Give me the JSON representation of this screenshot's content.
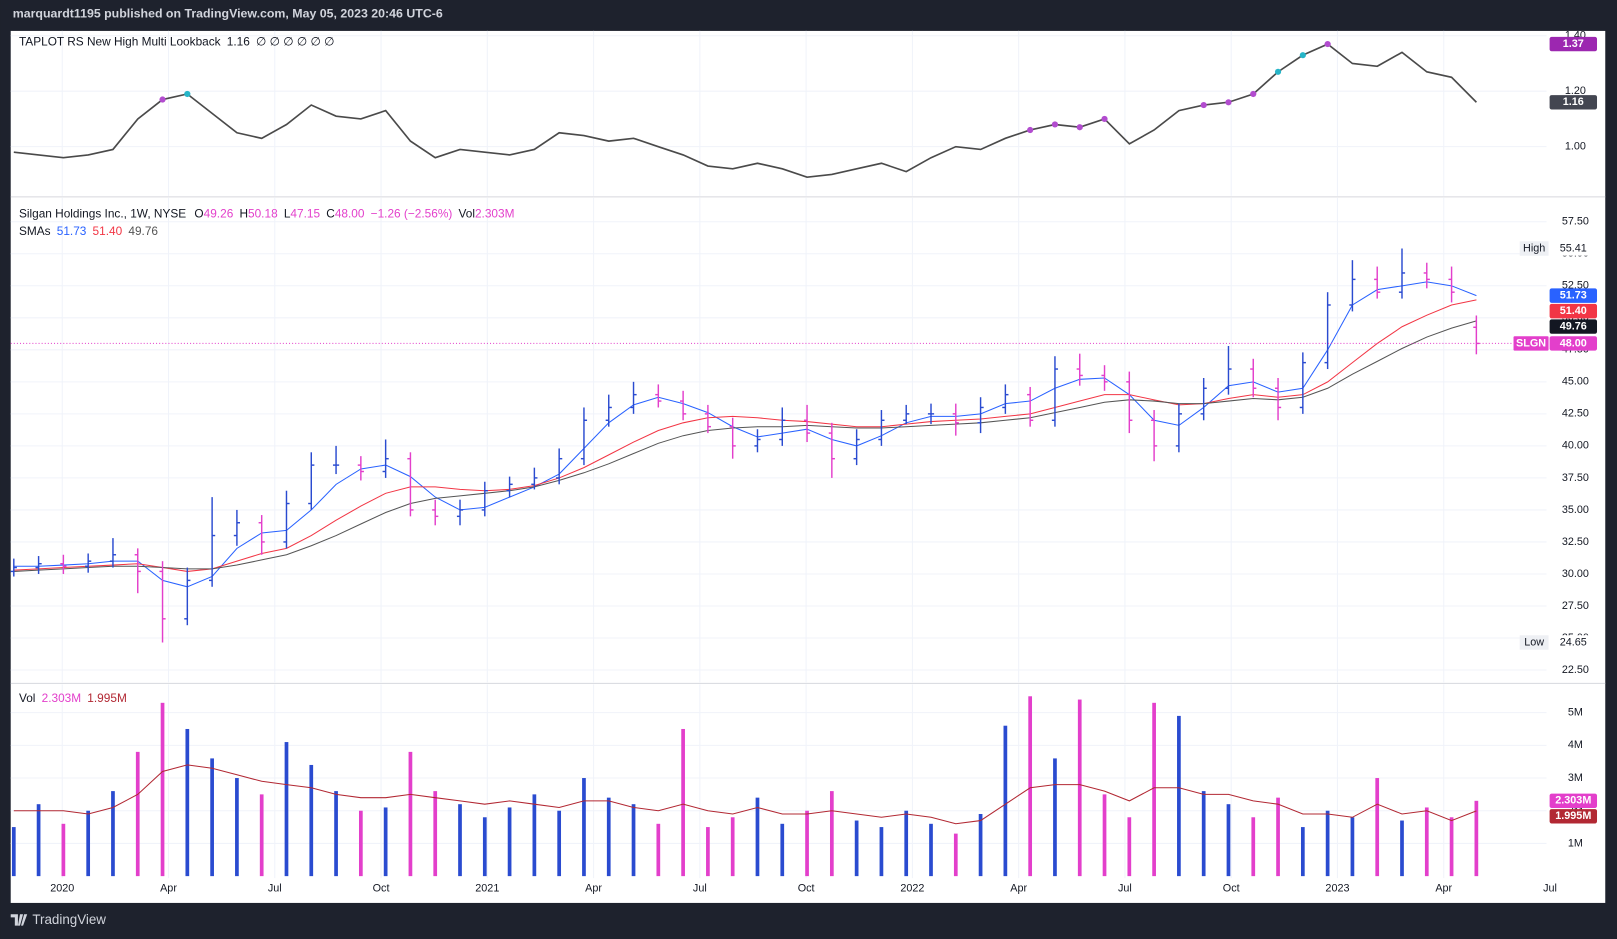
{
  "header": "marquardt1195 published on TradingView.com, May 05, 2023 20:46 UTC-6",
  "footer": "TradingView",
  "x_labels": [
    "2020",
    "Apr",
    "Jul",
    "Oct",
    "2021",
    "Apr",
    "Jul",
    "Oct",
    "2022",
    "Apr",
    "Jul",
    "Oct",
    "2023",
    "Apr",
    "Jul"
  ],
  "chart_data": [
    {
      "type": "line",
      "title": "TAPLOT RS New High Multi Lookback",
      "placeholders": "∅ ∅ ∅ ∅ ∅ ∅",
      "color": "#4a4a4a",
      "values": [
        0.98,
        0.97,
        0.96,
        0.97,
        0.99,
        1.1,
        1.17,
        1.19,
        1.12,
        1.05,
        1.03,
        1.08,
        1.15,
        1.11,
        1.1,
        1.13,
        1.02,
        0.96,
        0.99,
        0.98,
        0.97,
        0.99,
        1.05,
        1.04,
        1.02,
        1.03,
        1.0,
        0.97,
        0.93,
        0.92,
        0.94,
        0.92,
        0.89,
        0.9,
        0.92,
        0.94,
        0.91,
        0.96,
        1.0,
        0.99,
        1.03,
        1.06,
        1.08,
        1.07,
        1.1,
        1.01,
        1.06,
        1.13,
        1.15,
        1.16,
        1.19,
        1.27,
        1.33,
        1.37,
        1.3,
        1.29,
        1.34,
        1.27,
        1.25,
        1.16
      ],
      "marker_colors": [
        null,
        null,
        null,
        null,
        null,
        null,
        "#b24ccf",
        "#26b5c8",
        null,
        null,
        null,
        null,
        null,
        null,
        null,
        null,
        null,
        null,
        null,
        null,
        null,
        null,
        null,
        null,
        null,
        null,
        null,
        null,
        null,
        null,
        null,
        null,
        null,
        null,
        null,
        null,
        null,
        null,
        null,
        null,
        null,
        "#b24ccf",
        "#b24ccf",
        "#b24ccf",
        "#b24ccf",
        null,
        null,
        null,
        "#b24ccf",
        "#b24ccf",
        "#b24ccf",
        "#26b5c8",
        "#26b5c8",
        "#b24ccf",
        null,
        null,
        null,
        null,
        null,
        null
      ],
      "ylim": [
        0.83,
        1.41
      ],
      "yticks": [
        {
          "value": 1.0,
          "label": "1.00"
        },
        {
          "value": 1.2,
          "label": "1.20"
        },
        {
          "value": 1.4,
          "label": "1.40"
        }
      ],
      "tags": [
        {
          "value": 1.37,
          "label": "1.37",
          "color": "#9c27b0"
        },
        {
          "value": 1.16,
          "label": "1.16",
          "color": "#434651"
        }
      ]
    },
    {
      "type": "ohlc",
      "title": "Silgan Holdings Inc., 1W, NYSE",
      "legend_keys": [
        "O",
        "H",
        "L",
        "C",
        "Vol"
      ],
      "change": "−1.26 (−2.56%)",
      "sma_label": "SMAs",
      "up_color": "#2a4bd0",
      "down_color": "#e33fcb",
      "open": [
        30.2,
        30.5,
        30.8,
        30.6,
        31.0,
        31.5,
        30.2,
        26.5,
        29.5,
        33.0,
        34.0,
        32.5,
        35.5,
        38.5,
        38.5,
        38.0,
        39.0,
        35.0,
        34.5,
        35.0,
        36.5,
        37.0,
        37.5,
        39.0,
        42.0,
        43.0,
        44.0,
        43.5,
        42.5,
        41.5,
        40.0,
        40.5,
        42.0,
        41.0,
        39.0,
        40.5,
        42.0,
        42.5,
        42.5,
        41.8,
        43.0,
        44.0,
        42.0,
        46.0,
        45.5,
        45.0,
        42.0,
        40.0,
        42.5,
        44.5,
        46.0,
        44.5,
        43.0,
        46.5,
        51.0,
        53.0,
        52.0,
        53.5,
        53.0,
        49.26
      ],
      "high": [
        31.2,
        31.4,
        31.5,
        31.6,
        32.8,
        32.0,
        31.0,
        30.5,
        36.0,
        35.0,
        34.6,
        36.5,
        39.5,
        40.0,
        39.2,
        40.5,
        39.5,
        35.8,
        35.8,
        37.2,
        37.6,
        38.3,
        39.8,
        43.0,
        44.0,
        45.0,
        44.8,
        44.3,
        43.2,
        42.2,
        41.3,
        43.0,
        43.2,
        41.8,
        41.3,
        42.8,
        43.2,
        43.3,
        43.3,
        43.8,
        44.8,
        44.6,
        47.0,
        47.2,
        46.3,
        45.8,
        42.8,
        43.3,
        45.3,
        47.8,
        46.8,
        45.3,
        47.3,
        52.0,
        54.5,
        54.0,
        55.41,
        54.3,
        54.0,
        50.18
      ],
      "low": [
        29.8,
        30.0,
        30.0,
        30.1,
        30.5,
        28.5,
        24.65,
        26.0,
        29.0,
        32.2,
        31.5,
        32.0,
        35.0,
        37.8,
        37.3,
        37.5,
        34.5,
        33.8,
        33.8,
        34.5,
        36.0,
        36.6,
        37.0,
        38.5,
        41.5,
        42.5,
        43.0,
        42.0,
        41.0,
        39.0,
        39.5,
        40.0,
        40.3,
        37.5,
        38.5,
        40.0,
        41.7,
        41.7,
        40.8,
        41.0,
        42.5,
        41.5,
        41.5,
        44.7,
        44.3,
        41.0,
        38.8,
        39.5,
        42.0,
        44.0,
        43.8,
        42.0,
        42.5,
        46.0,
        50.5,
        51.5,
        51.5,
        52.3,
        51.2,
        47.15
      ],
      "close": [
        30.5,
        30.8,
        30.6,
        31.0,
        31.5,
        30.2,
        26.5,
        29.5,
        33.0,
        34.0,
        32.5,
        35.5,
        38.5,
        38.5,
        38.0,
        39.0,
        35.0,
        34.5,
        35.0,
        36.5,
        37.0,
        37.5,
        39.0,
        42.0,
        43.0,
        44.0,
        43.5,
        42.5,
        41.5,
        40.0,
        40.5,
        42.0,
        41.0,
        39.0,
        40.5,
        42.0,
        42.5,
        42.5,
        41.8,
        43.0,
        44.0,
        42.0,
        46.0,
        45.5,
        45.0,
        42.0,
        40.0,
        42.5,
        44.5,
        46.0,
        44.5,
        43.0,
        46.5,
        51.0,
        53.0,
        52.0,
        53.5,
        53.0,
        52.0,
        48.0
      ],
      "series": [
        {
          "color": "#2962ff",
          "values": [
            30.6,
            30.6,
            30.7,
            30.8,
            31.0,
            31.0,
            29.5,
            29.0,
            29.8,
            32.0,
            33.2,
            33.4,
            35.0,
            37.0,
            38.2,
            38.5,
            37.6,
            36.0,
            35.0,
            35.2,
            36.0,
            36.8,
            37.8,
            39.8,
            41.8,
            43.2,
            43.8,
            43.3,
            42.6,
            41.5,
            40.7,
            41.0,
            41.3,
            40.5,
            40.0,
            40.8,
            41.8,
            42.3,
            42.3,
            42.5,
            43.3,
            43.5,
            44.5,
            45.2,
            45.3,
            44.0,
            42.0,
            41.6,
            43.0,
            44.7,
            45.0,
            44.2,
            44.5,
            47.5,
            51.0,
            52.2,
            52.5,
            52.8,
            52.5,
            51.73
          ]
        },
        {
          "color": "#f23645",
          "values": [
            30.3,
            30.4,
            30.5,
            30.6,
            30.7,
            30.8,
            30.5,
            30.2,
            30.4,
            31.0,
            31.6,
            32.0,
            33.0,
            34.2,
            35.3,
            36.3,
            36.8,
            36.8,
            36.6,
            36.5,
            36.6,
            36.9,
            37.5,
            38.3,
            39.3,
            40.3,
            41.2,
            41.8,
            42.2,
            42.3,
            42.2,
            42.0,
            41.9,
            41.7,
            41.5,
            41.5,
            41.7,
            41.9,
            42.0,
            42.1,
            42.3,
            42.5,
            43.0,
            43.5,
            44.0,
            44.0,
            43.6,
            43.2,
            43.3,
            43.7,
            44.0,
            43.8,
            44.0,
            45.0,
            46.5,
            48.0,
            49.3,
            50.2,
            51.0,
            51.4
          ]
        },
        {
          "color": "#555555",
          "values": [
            30.2,
            30.3,
            30.4,
            30.5,
            30.6,
            30.6,
            30.5,
            30.4,
            30.4,
            30.7,
            31.1,
            31.5,
            32.2,
            33.0,
            33.9,
            34.8,
            35.5,
            35.9,
            36.1,
            36.3,
            36.5,
            36.8,
            37.3,
            37.9,
            38.6,
            39.4,
            40.2,
            40.8,
            41.2,
            41.4,
            41.5,
            41.5,
            41.6,
            41.5,
            41.4,
            41.4,
            41.5,
            41.6,
            41.7,
            41.8,
            42.0,
            42.2,
            42.6,
            43.0,
            43.4,
            43.6,
            43.5,
            43.3,
            43.3,
            43.5,
            43.7,
            43.6,
            43.8,
            44.5,
            45.6,
            46.6,
            47.6,
            48.5,
            49.2,
            49.76
          ]
        }
      ],
      "ylim": [
        21.7,
        59.2
      ],
      "yticks": [
        {
          "value": 22.5,
          "label": "22.50"
        },
        {
          "value": 25,
          "label": "25.00"
        },
        {
          "value": 27.5,
          "label": "27.50"
        },
        {
          "value": 30,
          "label": "30.00"
        },
        {
          "value": 32.5,
          "label": "32.50"
        },
        {
          "value": 35,
          "label": "35.00"
        },
        {
          "value": 37.5,
          "label": "37.50"
        },
        {
          "value": 40,
          "label": "40.00"
        },
        {
          "value": 42.5,
          "label": "42.50"
        },
        {
          "value": 45,
          "label": "45.00"
        },
        {
          "value": 47.5,
          "label": "47.50"
        },
        {
          "value": 50,
          "label": "50.00"
        },
        {
          "value": 52.5,
          "label": "52.50"
        },
        {
          "value": 55,
          "label": "55.00"
        },
        {
          "value": 57.5,
          "label": "57.50"
        }
      ],
      "tags": [
        {
          "value": 51.73,
          "label": "51.73",
          "color": "#2962ff"
        },
        {
          "value": 51.4,
          "label": "51.40",
          "color": "#f23645"
        },
        {
          "value": 49.76,
          "label": "49.76",
          "color": "#131722"
        },
        {
          "name": "SLGN",
          "value": 48.0,
          "label": "48.00",
          "color": "#e33fcb"
        }
      ],
      "extremes": [
        {
          "name": "High",
          "value": 55.41,
          "label": "55.41"
        },
        {
          "name": "Low",
          "value": 24.65,
          "label": "24.65"
        }
      ]
    },
    {
      "type": "bar",
      "title": "Vol",
      "values": [
        1.5,
        2.2,
        1.6,
        2.0,
        2.6,
        3.8,
        5.3,
        4.5,
        3.6,
        3.0,
        2.5,
        4.1,
        3.4,
        2.6,
        2.0,
        2.1,
        3.8,
        2.6,
        2.2,
        1.8,
        2.1,
        2.5,
        2.0,
        3.0,
        2.4,
        2.2,
        1.6,
        4.5,
        1.5,
        1.8,
        2.4,
        1.6,
        2.0,
        2.6,
        1.7,
        1.5,
        2.0,
        1.6,
        1.3,
        1.9,
        4.6,
        5.5,
        3.6,
        5.4,
        2.5,
        1.8,
        5.3,
        4.9,
        2.6,
        2.2,
        1.8,
        2.4,
        1.5,
        2.0,
        1.8,
        3.0,
        1.7,
        2.1,
        1.8,
        2.303
      ],
      "series": [
        {
          "color": "#b22833",
          "values": [
            2.0,
            2.0,
            2.0,
            1.9,
            2.1,
            2.5,
            3.2,
            3.4,
            3.3,
            3.1,
            2.9,
            2.8,
            2.7,
            2.5,
            2.4,
            2.4,
            2.5,
            2.4,
            2.3,
            2.2,
            2.3,
            2.2,
            2.1,
            2.3,
            2.3,
            2.1,
            2.0,
            2.2,
            2.0,
            1.9,
            2.1,
            1.9,
            1.9,
            2.0,
            1.9,
            1.8,
            1.9,
            1.8,
            1.6,
            1.7,
            2.2,
            2.7,
            2.8,
            2.8,
            2.6,
            2.3,
            2.7,
            2.7,
            2.5,
            2.5,
            2.3,
            2.2,
            1.9,
            1.9,
            1.8,
            2.2,
            1.9,
            2.0,
            1.7,
            1.995
          ]
        }
      ],
      "ylim": [
        0,
        5.8
      ],
      "yticks": [
        {
          "value": 1,
          "label": "1M"
        },
        {
          "value": 2,
          "label": "2M"
        },
        {
          "value": 3,
          "label": "3M"
        },
        {
          "value": 4,
          "label": "4M"
        },
        {
          "value": 5,
          "label": "5M"
        }
      ],
      "tags": [
        {
          "value": 2.303,
          "label": "2.303M",
          "color": "#e33fcb"
        },
        {
          "value": 1.995,
          "label": "1.995M",
          "color": "#b22833"
        }
      ]
    }
  ]
}
